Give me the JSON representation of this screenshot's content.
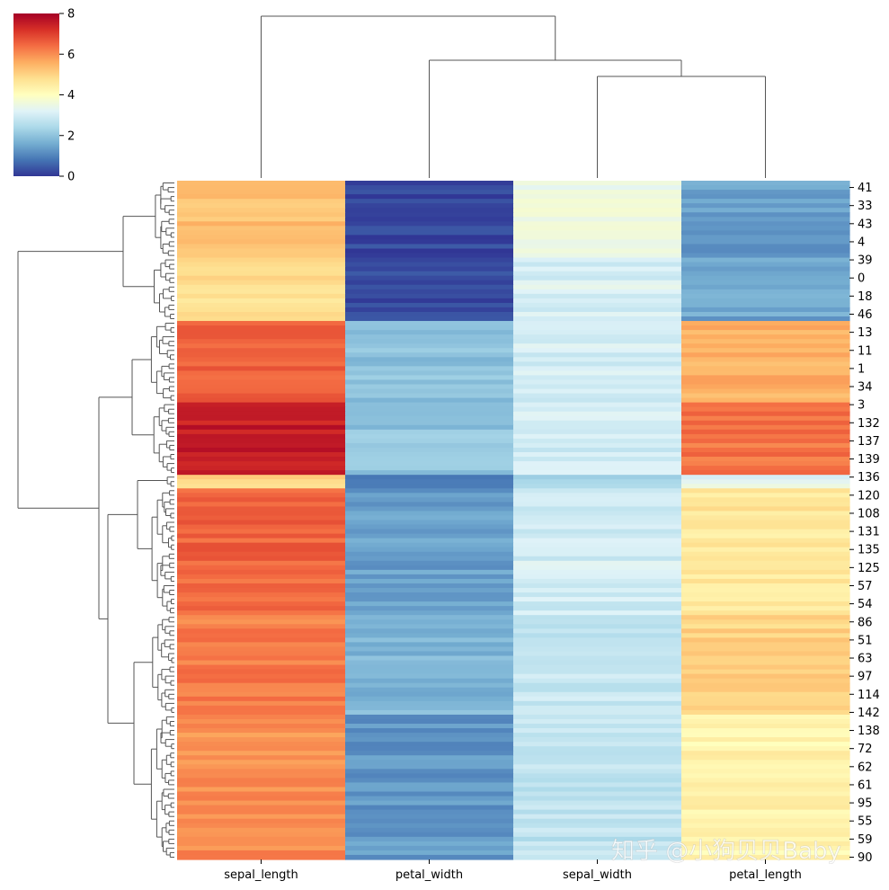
{
  "chart_data": {
    "type": "heatmap",
    "title": "",
    "colormap": "RdYlBu_r",
    "colormap_stops": [
      "#313695",
      "#4575b4",
      "#74add1",
      "#abd9e9",
      "#e0f3f8",
      "#ffffbf",
      "#fee090",
      "#fdae61",
      "#f46d43",
      "#d73027",
      "#a50026"
    ],
    "colorbar": {
      "min": 0,
      "max": 8,
      "ticks": [
        "0",
        "2",
        "4",
        "6",
        "8"
      ]
    },
    "columns": [
      "sepal_length",
      "petal_width",
      "sepal_width",
      "petal_length"
    ],
    "row_tick_labels": [
      "41",
      "33",
      "43",
      "4",
      "39",
      "0",
      "18",
      "46",
      "13",
      "11",
      "1",
      "34",
      "3",
      "132",
      "137",
      "139",
      "136",
      "120",
      "108",
      "131",
      "135",
      "125",
      "57",
      "54",
      "86",
      "51",
      "63",
      "97",
      "114",
      "142",
      "138",
      "72",
      "62",
      "61",
      "95",
      "55",
      "59",
      "90"
    ],
    "row_groups": [
      {
        "rows": 17,
        "sepal_length": 5.3,
        "petal_width": 0.2,
        "sepal_width": 3.5,
        "petal_length": 1.4
      },
      {
        "rows": 14,
        "sepal_length": 4.8,
        "petal_width": 0.2,
        "sepal_width": 3.1,
        "petal_length": 1.5
      },
      {
        "rows": 18,
        "sepal_length": 6.6,
        "petal_width": 2.0,
        "sepal_width": 3.0,
        "petal_length": 5.5
      },
      {
        "rows": 16,
        "sepal_length": 7.5,
        "petal_width": 2.0,
        "sepal_width": 3.0,
        "petal_length": 6.3
      },
      {
        "rows": 3,
        "sepal_length": 5.0,
        "petal_width": 1.0,
        "sepal_width": 2.4,
        "petal_length": 3.3
      },
      {
        "rows": 28,
        "sepal_length": 6.5,
        "petal_width": 1.4,
        "sepal_width": 3.0,
        "petal_length": 4.6
      },
      {
        "rows": 22,
        "sepal_length": 6.2,
        "petal_width": 1.8,
        "sepal_width": 2.8,
        "petal_length": 5.0
      },
      {
        "rows": 32,
        "sepal_length": 6.0,
        "petal_width": 1.3,
        "sepal_width": 2.7,
        "petal_length": 4.3
      }
    ]
  },
  "watermark": "知乎 @小狗贝贝Baby"
}
